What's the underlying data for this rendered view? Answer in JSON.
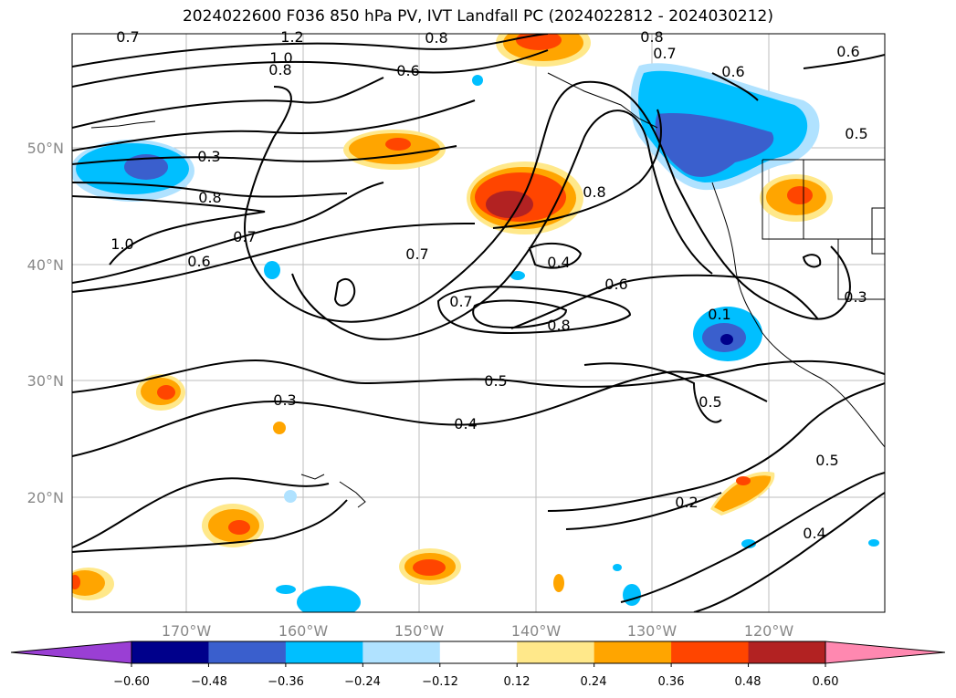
{
  "title": "2024022600 F036 850 hPa PV, IVT Landfall PC (2024022812 - 2024030212)",
  "lat_labels": [
    "50°N",
    "40°N",
    "30°N",
    "20°N"
  ],
  "lon_labels": [
    "170°W",
    "160°W",
    "150°W",
    "140°W",
    "130°W",
    "120°W"
  ],
  "contour_labels": [
    "0.7",
    "1.2",
    "0.8",
    "1.0",
    "0.8",
    "0.6",
    "0.8",
    "0.7",
    "0.6",
    "0.6",
    "0.5",
    "0.3",
    "0.8",
    "1.0",
    "0.7",
    "0.6",
    "0.7",
    "0.8",
    "0.4",
    "0.6",
    "0.7",
    "0.8",
    "0.1",
    "0.3",
    "0.5",
    "0.3",
    "0.4",
    "0.5",
    "0.2",
    "0.5",
    "0.4"
  ],
  "colorbar": {
    "colors": [
      "#9a3fd4",
      "#00008b",
      "#3a5fcd",
      "#00bfff",
      "#b0e2ff",
      "#ffffff",
      "#ffe88a",
      "#ffa500",
      "#ff4500",
      "#b22222",
      "#ff88b0"
    ],
    "tick_labels": [
      "−0.60",
      "−0.48",
      "−0.36",
      "−0.24",
      "−0.12",
      "0.12",
      "0.24",
      "0.36",
      "0.48",
      "0.60"
    ]
  }
}
